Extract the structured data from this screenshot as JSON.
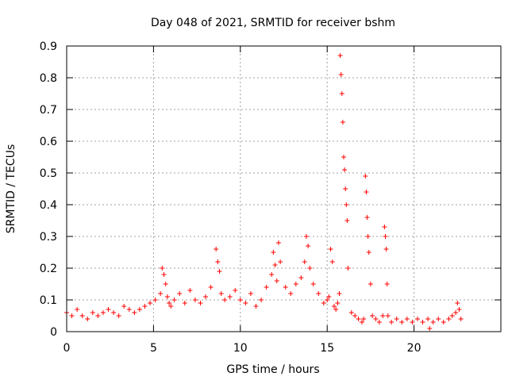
{
  "chart_data": {
    "type": "scatter",
    "title": "Day 048 of 2021, SRMTID for receiver bshm",
    "xlabel": "GPS time / hours",
    "ylabel": "SRMTID / TECUs",
    "xlim": [
      0,
      25
    ],
    "ylim": [
      0,
      0.9
    ],
    "x_ticks": [
      0,
      5,
      10,
      15,
      20
    ],
    "y_ticks": [
      0,
      0.1,
      0.2,
      0.3,
      0.4,
      0.5,
      0.6,
      0.7,
      0.8,
      0.9
    ],
    "x_tick_labels": [
      "0",
      "5",
      "10",
      "15",
      "20"
    ],
    "y_tick_labels": [
      "0",
      "0.1",
      "0.2",
      "0.3",
      "0.4",
      "0.5",
      "0.6",
      "0.7",
      "0.8",
      "0.9"
    ],
    "grid": true,
    "marker": "+",
    "marker_color": "#ff0000",
    "series": [
      {
        "name": "SRMTID",
        "x": [
          0.0,
          0.3,
          0.6,
          0.9,
          1.2,
          1.5,
          1.8,
          2.1,
          2.4,
          2.7,
          3.0,
          3.3,
          3.6,
          3.9,
          4.2,
          4.5,
          4.8,
          5.1,
          5.4,
          5.5,
          5.6,
          5.7,
          5.8,
          5.9,
          6.0,
          6.2,
          6.5,
          6.8,
          7.1,
          7.4,
          7.7,
          8.0,
          8.3,
          8.6,
          8.7,
          8.8,
          8.9,
          9.1,
          9.4,
          9.7,
          10.0,
          10.3,
          10.6,
          10.9,
          11.2,
          11.5,
          11.8,
          11.9,
          12.0,
          12.1,
          12.2,
          12.3,
          12.6,
          12.9,
          13.2,
          13.5,
          13.7,
          13.8,
          13.9,
          14.0,
          14.2,
          14.5,
          14.8,
          15.0,
          15.1,
          15.2,
          15.3,
          15.4,
          15.5,
          15.6,
          15.7,
          15.75,
          15.8,
          15.85,
          15.9,
          15.95,
          16.0,
          16.05,
          16.1,
          16.15,
          16.2,
          16.4,
          16.6,
          16.8,
          17.0,
          17.1,
          17.2,
          17.25,
          17.3,
          17.35,
          17.4,
          17.5,
          17.6,
          17.8,
          18.0,
          18.2,
          18.3,
          18.35,
          18.4,
          18.45,
          18.5,
          18.7,
          19.0,
          19.3,
          19.6,
          19.9,
          20.2,
          20.5,
          20.8,
          20.9,
          21.1,
          21.4,
          21.7,
          22.0,
          22.2,
          22.4,
          22.5,
          22.6,
          22.7
        ],
        "y": [
          0.06,
          0.05,
          0.07,
          0.05,
          0.04,
          0.06,
          0.05,
          0.06,
          0.07,
          0.06,
          0.05,
          0.08,
          0.07,
          0.06,
          0.07,
          0.08,
          0.09,
          0.1,
          0.12,
          0.2,
          0.18,
          0.15,
          0.11,
          0.09,
          0.08,
          0.1,
          0.12,
          0.09,
          0.13,
          0.1,
          0.09,
          0.11,
          0.14,
          0.26,
          0.22,
          0.19,
          0.12,
          0.1,
          0.11,
          0.13,
          0.1,
          0.09,
          0.12,
          0.08,
          0.1,
          0.14,
          0.18,
          0.25,
          0.21,
          0.16,
          0.28,
          0.22,
          0.14,
          0.12,
          0.15,
          0.17,
          0.22,
          0.3,
          0.27,
          0.2,
          0.15,
          0.12,
          0.09,
          0.1,
          0.11,
          0.26,
          0.22,
          0.08,
          0.07,
          0.09,
          0.12,
          0.87,
          0.81,
          0.75,
          0.66,
          0.55,
          0.51,
          0.45,
          0.4,
          0.35,
          0.2,
          0.06,
          0.05,
          0.04,
          0.03,
          0.04,
          0.49,
          0.44,
          0.36,
          0.3,
          0.25,
          0.15,
          0.05,
          0.04,
          0.03,
          0.05,
          0.33,
          0.3,
          0.26,
          0.15,
          0.05,
          0.03,
          0.04,
          0.03,
          0.04,
          0.03,
          0.04,
          0.03,
          0.04,
          0.01,
          0.03,
          0.04,
          0.03,
          0.04,
          0.05,
          0.06,
          0.09,
          0.07,
          0.04
        ]
      }
    ]
  }
}
